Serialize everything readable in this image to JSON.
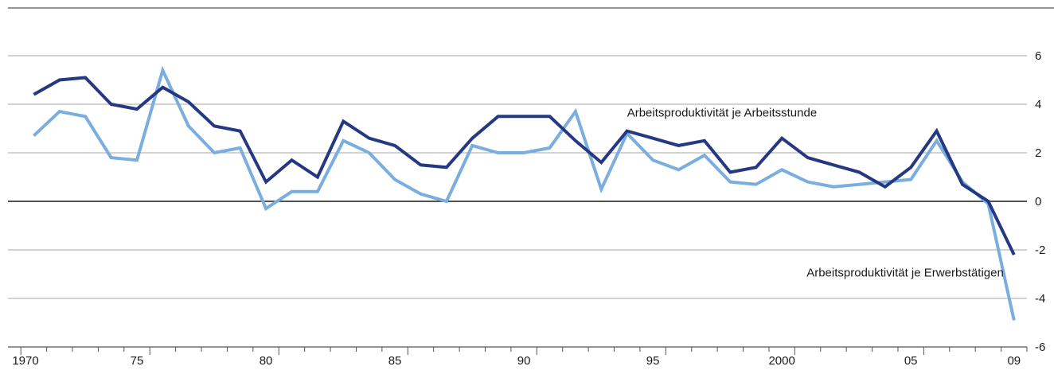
{
  "chart_data": {
    "type": "line",
    "title": "",
    "xlabel": "",
    "ylabel": "",
    "x": [
      1971,
      1972,
      1973,
      1974,
      1975,
      1976,
      1977,
      1978,
      1979,
      1980,
      1981,
      1982,
      1983,
      1984,
      1985,
      1986,
      1987,
      1988,
      1989,
      1990,
      1991,
      1992,
      1993,
      1994,
      1995,
      1996,
      1997,
      1998,
      1999,
      2000,
      2001,
      2002,
      2003,
      2004,
      2005,
      2006,
      2007,
      2008,
      2009
    ],
    "xlim": [
      1970,
      2009.5
    ],
    "ylim": [
      -6,
      6
    ],
    "grid": true,
    "x_ticks": [
      {
        "value": 1970,
        "label": "1970"
      },
      {
        "value": 1975,
        "label": "75"
      },
      {
        "value": 1980,
        "label": "80"
      },
      {
        "value": 1985,
        "label": "85"
      },
      {
        "value": 1990,
        "label": "90"
      },
      {
        "value": 1995,
        "label": "95"
      },
      {
        "value": 2000,
        "label": "2000"
      },
      {
        "value": 2005,
        "label": "05"
      },
      {
        "value": 2009,
        "label": "09"
      }
    ],
    "y_ticks": [
      {
        "value": 6,
        "label": "6"
      },
      {
        "value": 4,
        "label": "4"
      },
      {
        "value": 2,
        "label": "2"
      },
      {
        "value": 0,
        "label": "0"
      },
      {
        "value": -2,
        "label": "-2"
      },
      {
        "value": -4,
        "label": "-4"
      },
      {
        "value": -6,
        "label": "-6"
      }
    ],
    "series": [
      {
        "name": "Arbeitsproduktivität je Arbeitsstunde",
        "color": "#253883",
        "values": [
          4.4,
          5.0,
          5.1,
          4.0,
          3.8,
          4.7,
          4.1,
          3.1,
          2.9,
          0.8,
          1.7,
          1.0,
          3.3,
          2.6,
          2.3,
          1.5,
          1.4,
          2.6,
          3.5,
          3.5,
          3.5,
          2.5,
          1.6,
          2.9,
          2.6,
          2.3,
          2.5,
          1.2,
          1.4,
          2.6,
          1.8,
          1.5,
          1.2,
          0.6,
          1.4,
          2.9,
          0.7,
          0.0,
          -2.2
        ],
        "label_anchor": {
          "x": 1994,
          "y": 3.5
        }
      },
      {
        "name": "Arbeitsproduktivität je Erwerbstätigen",
        "color": "#7aaedf",
        "values": [
          2.7,
          3.7,
          3.5,
          1.8,
          1.7,
          5.4,
          3.1,
          2.0,
          2.2,
          -0.3,
          0.4,
          0.4,
          2.5,
          2.0,
          0.9,
          0.3,
          0.0,
          2.3,
          2.0,
          2.0,
          2.2,
          3.7,
          0.5,
          2.8,
          1.7,
          1.3,
          1.9,
          0.8,
          0.7,
          1.3,
          0.8,
          0.6,
          0.7,
          0.8,
          0.9,
          2.5,
          0.8,
          -0.1,
          -4.9
        ],
        "label_anchor": {
          "x": 2008.6,
          "y": -3.1
        }
      }
    ]
  }
}
